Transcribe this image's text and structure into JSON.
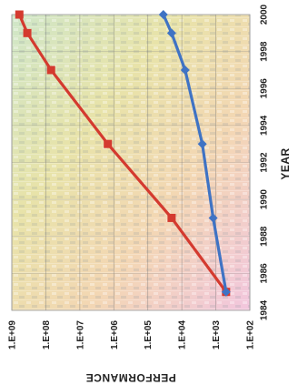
{
  "chart_data": {
    "type": "line",
    "title": "",
    "xlabel": "YEAR",
    "ylabel": "PERFORMANCE",
    "x_axis": {
      "range": [
        1984,
        2000
      ],
      "ticks": [
        1984,
        1986,
        1988,
        1990,
        1992,
        1994,
        1996,
        1998,
        2000
      ],
      "tick_labels": [
        "1984",
        "1986",
        "1988",
        "1990",
        "1992",
        "1994",
        "1996",
        "1998",
        "2000"
      ]
    },
    "y_axis": {
      "scale": "log",
      "range": [
        100,
        1000000000
      ],
      "ticks": [
        100,
        1000,
        10000,
        100000,
        1000000,
        10000000,
        100000000,
        1000000000
      ],
      "tick_labels": [
        "1.E+02",
        "1.E+03",
        "1.E+04",
        "1.E+05",
        "1.E+06",
        "1.E+07",
        "1.E+08",
        "1.E+09"
      ]
    },
    "grid": true,
    "orientation": "rotated 90 degrees (year axis vertical on right, performance axis horizontal on bottom, reversed)",
    "series": [
      {
        "color": "#d43a2f",
        "marker": "square",
        "points": [
          {
            "x": 1985,
            "y": 500
          },
          {
            "x": 1989,
            "y": 20000
          },
          {
            "x": 1993,
            "y": 1500000
          },
          {
            "x": 1997,
            "y": 70000000
          },
          {
            "x": 1999,
            "y": 350000000
          },
          {
            "x": 2000,
            "y": 600000000
          }
        ]
      },
      {
        "color": "#3f73c4",
        "marker": "diamond",
        "points": [
          {
            "x": 1985,
            "y": 500
          },
          {
            "x": 1989,
            "y": 1200
          },
          {
            "x": 1993,
            "y": 2500
          },
          {
            "x": 1997,
            "y": 8000
          },
          {
            "x": 1999,
            "y": 20000
          },
          {
            "x": 2000,
            "y": 35000
          }
        ]
      }
    ]
  }
}
